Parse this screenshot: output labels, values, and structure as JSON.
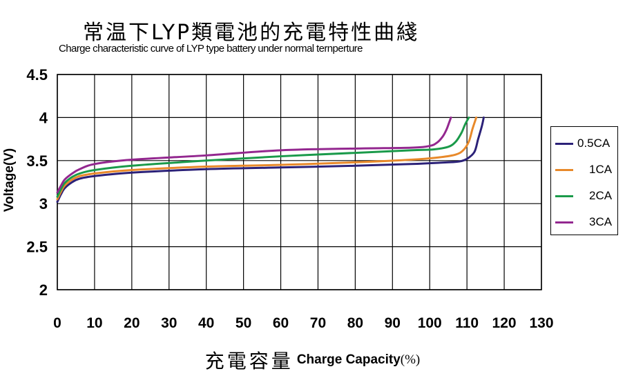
{
  "chart_data": {
    "type": "line",
    "title": "常温下LYP類電池的充電特性曲綫",
    "subtitle": "Charge characteristic curve of LYP type battery under normal ternperture",
    "xlabel_cn": "充電容量",
    "xlabel_en": "Charge Capacity",
    "xlabel_unit": "(%)",
    "ylabel": "Voltage(V)",
    "xlim": [
      0,
      130
    ],
    "ylim": [
      2,
      4.5
    ],
    "x_ticks": [
      "0",
      "10",
      "20",
      "30",
      "40",
      "50",
      "60",
      "70",
      "80",
      "90",
      "100",
      "110",
      "120",
      "130"
    ],
    "y_ticks": [
      "4.5",
      "4",
      "3.5",
      "3",
      "2.5",
      "2"
    ],
    "grid": true,
    "legend_position": "right",
    "series": [
      {
        "name": "0.5CA",
        "color": "#2b2178",
        "x": [
          0,
          1,
          2,
          4,
          6,
          10,
          20,
          40,
          60,
          80,
          95,
          105,
          108,
          110,
          112,
          113,
          114,
          114.5
        ],
        "y": [
          3.02,
          3.11,
          3.18,
          3.25,
          3.29,
          3.32,
          3.36,
          3.4,
          3.42,
          3.44,
          3.46,
          3.48,
          3.49,
          3.52,
          3.6,
          3.75,
          3.9,
          4.0
        ]
      },
      {
        "name": "1CA",
        "color": "#e8892a",
        "x": [
          0,
          1,
          2,
          4,
          6,
          10,
          20,
          40,
          60,
          80,
          95,
          103,
          107,
          109,
          110.5,
          111.5,
          112.5
        ],
        "y": [
          3.05,
          3.14,
          3.21,
          3.28,
          3.32,
          3.35,
          3.39,
          3.43,
          3.45,
          3.48,
          3.51,
          3.54,
          3.57,
          3.62,
          3.72,
          3.87,
          4.0
        ]
      },
      {
        "name": "2CA",
        "color": "#1a9a4a",
        "x": [
          0,
          1,
          2,
          4,
          6,
          10,
          20,
          40,
          60,
          80,
          95,
          101,
          105,
          107,
          108.5,
          109.5,
          110.5
        ],
        "y": [
          3.08,
          3.17,
          3.24,
          3.31,
          3.35,
          3.39,
          3.44,
          3.5,
          3.55,
          3.59,
          3.62,
          3.63,
          3.66,
          3.72,
          3.82,
          3.92,
          4.0
        ]
      },
      {
        "name": "3CA",
        "color": "#93278f",
        "x": [
          0,
          1,
          2,
          4,
          6,
          10,
          20,
          40,
          60,
          80,
          95,
          100,
          102,
          103.5,
          104.5,
          105.2,
          105.7
        ],
        "y": [
          3.13,
          3.21,
          3.28,
          3.35,
          3.4,
          3.46,
          3.51,
          3.56,
          3.62,
          3.64,
          3.65,
          3.67,
          3.71,
          3.78,
          3.86,
          3.94,
          4.0
        ]
      }
    ]
  }
}
